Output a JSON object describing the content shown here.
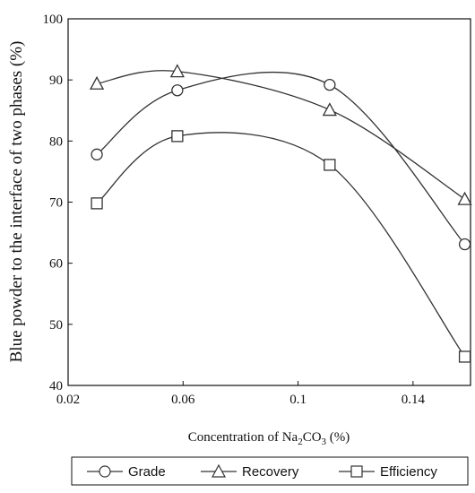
{
  "chart_data": {
    "type": "line",
    "xlabel_prefix": "Concentration of Na",
    "xlabel_sub1": "2",
    "xlabel_mid": "CO",
    "xlabel_sub2": "3",
    "xlabel_suffix": " (%)",
    "ylabel": "Blue powder to the interface of two phases (%)",
    "xlim": [
      0.02,
      0.16
    ],
    "ylim": [
      40,
      100
    ],
    "x_ticks": [
      "0.02",
      "0.06",
      "0.1",
      "0.14"
    ],
    "x_tick_values": [
      0.02,
      0.06,
      0.1,
      0.14
    ],
    "y_ticks": [
      "40",
      "50",
      "60",
      "70",
      "80",
      "90",
      "100"
    ],
    "y_tick_values": [
      40,
      50,
      60,
      70,
      80,
      90,
      100
    ],
    "grid": false,
    "legend_position": "bottom",
    "colors": {
      "line": "#333333",
      "marker_fill": "#ffffff",
      "text": "#111111"
    },
    "series": [
      {
        "name": "Grade",
        "marker": "circle",
        "x": [
          0.03,
          0.058,
          0.111,
          0.158
        ],
        "y": [
          77.8,
          88.3,
          89.2,
          63.1
        ]
      },
      {
        "name": "Recovery",
        "marker": "triangle",
        "x": [
          0.03,
          0.058,
          0.111,
          0.158
        ],
        "y": [
          89.4,
          91.4,
          85.1,
          70.5
        ]
      },
      {
        "name": "Efficiency",
        "marker": "square",
        "x": [
          0.03,
          0.058,
          0.111,
          0.158
        ],
        "y": [
          69.8,
          80.8,
          76.1,
          44.7
        ]
      }
    ]
  }
}
